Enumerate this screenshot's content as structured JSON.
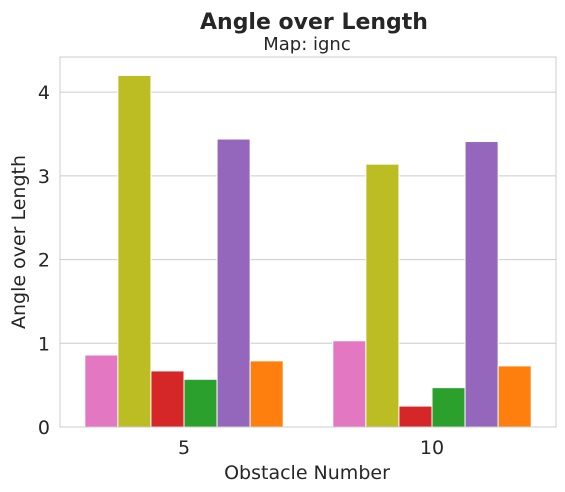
{
  "chart_data": {
    "type": "bar",
    "title": "Angle over Length",
    "subtitle": "Map: ignc",
    "xlabel": "Obstacle Number",
    "ylabel": "Angle over Length",
    "categories": [
      "5",
      "10"
    ],
    "ylim": [
      0,
      4.42
    ],
    "yticks": [
      0,
      1,
      2,
      3,
      4
    ],
    "grid": true,
    "series": [
      {
        "color": "#e377c2",
        "values": [
          0.86,
          1.03
        ]
      },
      {
        "color": "#bcbd22",
        "values": [
          4.2,
          3.14
        ]
      },
      {
        "color": "#d62728",
        "values": [
          0.67,
          0.25
        ]
      },
      {
        "color": "#2ca02c",
        "values": [
          0.57,
          0.47
        ]
      },
      {
        "color": "#9467bd",
        "values": [
          3.44,
          3.41
        ]
      },
      {
        "color": "#ff7f0e",
        "values": [
          0.79,
          0.73
        ]
      }
    ]
  }
}
